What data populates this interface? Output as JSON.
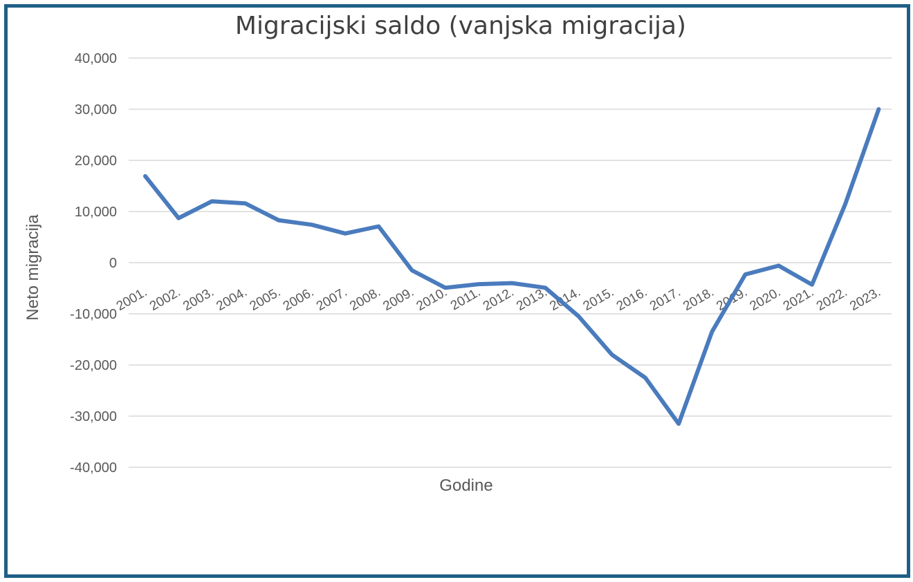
{
  "chart_data": {
    "type": "line",
    "title": "Migracijski saldo (vanjska migracija)",
    "xlabel": "Godine",
    "ylabel": "Neto migracija",
    "categories": [
      "2001.",
      "2002.",
      "2003.",
      "2004.",
      "2005.",
      "2006.",
      "2007.",
      "2008.",
      "2009.",
      "2010.",
      "2011.",
      "2012.",
      "2013.",
      "2014.",
      "2015.",
      "2016.",
      "2017.",
      "2018.",
      "2019.",
      "2020.",
      "2021.",
      "2022.",
      "2023."
    ],
    "series": [
      {
        "values": [
          16900,
          8700,
          12000,
          11600,
          8300,
          7400,
          5700,
          7100,
          -1500,
          -4900,
          -4200,
          -4000,
          -4900,
          -10500,
          -18000,
          -22500,
          -31500,
          -13500,
          -2300,
          -600,
          -4300,
          11500,
          30000
        ]
      }
    ],
    "yticks": [
      "40,000",
      "30,000",
      "20,000",
      "10,000",
      "0",
      "-10,000",
      "-20,000",
      "-30,000",
      "-40,000"
    ],
    "ylim": [
      -40000,
      40000
    ],
    "grid": true,
    "legend": "none",
    "line_color": "#4a7bbd"
  }
}
